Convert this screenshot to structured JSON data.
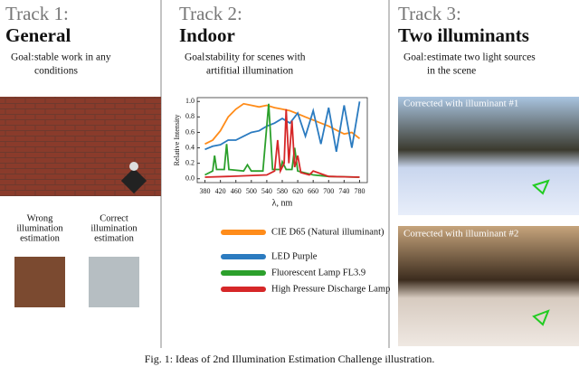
{
  "tracks": [
    {
      "label": "Track 1:",
      "title": "General",
      "goal_label": "Goal:",
      "goal_lines": [
        "stable work in any",
        "conditions"
      ]
    },
    {
      "label": "Track 2:",
      "title": "Indoor",
      "goal_label": "Goal:",
      "goal_lines": [
        "stability for scenes with",
        "artifitial illumination"
      ]
    },
    {
      "label": "Track 3:",
      "title": "Two illuminants",
      "goal_label": "Goal:",
      "goal_lines": [
        "estimate two light sources",
        "in the scene"
      ]
    }
  ],
  "swatches": [
    {
      "lines": [
        "Wrong",
        "illumination",
        "estimation"
      ],
      "color": "#7b4a30"
    },
    {
      "lines": [
        "Correct",
        "illumination",
        "estimation"
      ],
      "color": "#b6bec2"
    }
  ],
  "image_captions": [
    "Corrected with illuminant #1",
    "Corrected with illuminant #2"
  ],
  "chart_data": {
    "type": "line",
    "xlabel": "λ, nm",
    "ylabel": "Relative Intensity",
    "xlim": [
      360,
      800
    ],
    "ylim": [
      -0.05,
      1.05
    ],
    "xticks": [
      380,
      420,
      460,
      500,
      540,
      580,
      620,
      660,
      700,
      740,
      780
    ],
    "yticks": [
      {
        "value": 0,
        "label": "0.0"
      },
      0.2,
      0.4,
      0.6,
      0.8,
      {
        "value": 1,
        "label": "1.0"
      }
    ],
    "series": [
      {
        "name": "CIE D65 (Natural illuminant)",
        "color": "#ff8c1a",
        "x": [
          380,
          400,
          420,
          440,
          460,
          480,
          500,
          520,
          540,
          560,
          580,
          600,
          620,
          640,
          660,
          680,
          700,
          720,
          740,
          760,
          780
        ],
        "values": [
          0.45,
          0.5,
          0.62,
          0.8,
          0.9,
          0.97,
          0.95,
          0.93,
          0.95,
          0.92,
          0.9,
          0.88,
          0.84,
          0.8,
          0.76,
          0.72,
          0.68,
          0.63,
          0.58,
          0.6,
          0.52
        ]
      },
      {
        "name": "LED Purple",
        "color": "#2b7bc0",
        "x": [
          380,
          400,
          420,
          440,
          460,
          480,
          500,
          520,
          540,
          560,
          580,
          600,
          620,
          640,
          660,
          680,
          700,
          720,
          740,
          760,
          780
        ],
        "values": [
          0.38,
          0.42,
          0.44,
          0.5,
          0.5,
          0.55,
          0.6,
          0.62,
          0.68,
          0.72,
          0.78,
          0.72,
          0.85,
          0.55,
          0.88,
          0.45,
          0.92,
          0.35,
          0.95,
          0.4,
          1.0
        ]
      },
      {
        "name": "Fluorescent Lamp FL3.9",
        "color": "#2ca02c",
        "x": [
          380,
          400,
          405,
          410,
          430,
          436,
          442,
          480,
          490,
          500,
          530,
          545,
          555,
          575,
          580,
          590,
          605,
          612,
          620,
          660,
          700,
          780
        ],
        "values": [
          0.05,
          0.1,
          0.3,
          0.12,
          0.12,
          0.45,
          0.12,
          0.1,
          0.18,
          0.1,
          0.1,
          0.97,
          0.12,
          0.12,
          0.22,
          0.12,
          0.12,
          0.4,
          0.1,
          0.05,
          0.03,
          0.02
        ]
      },
      {
        "name": "High Pressure Discharge Lamp",
        "color": "#d62728",
        "x": [
          380,
          440,
          540,
          560,
          568,
          575,
          585,
          590,
          597,
          605,
          612,
          620,
          628,
          650,
          660,
          700,
          780
        ],
        "values": [
          0.02,
          0.03,
          0.05,
          0.1,
          0.5,
          0.1,
          0.2,
          0.9,
          0.2,
          0.75,
          0.15,
          0.3,
          0.08,
          0.05,
          0.1,
          0.03,
          0.02
        ]
      }
    ]
  },
  "caption": "Fig. 1: Ideas of 2nd Illumination Estimation Challenge illustration."
}
